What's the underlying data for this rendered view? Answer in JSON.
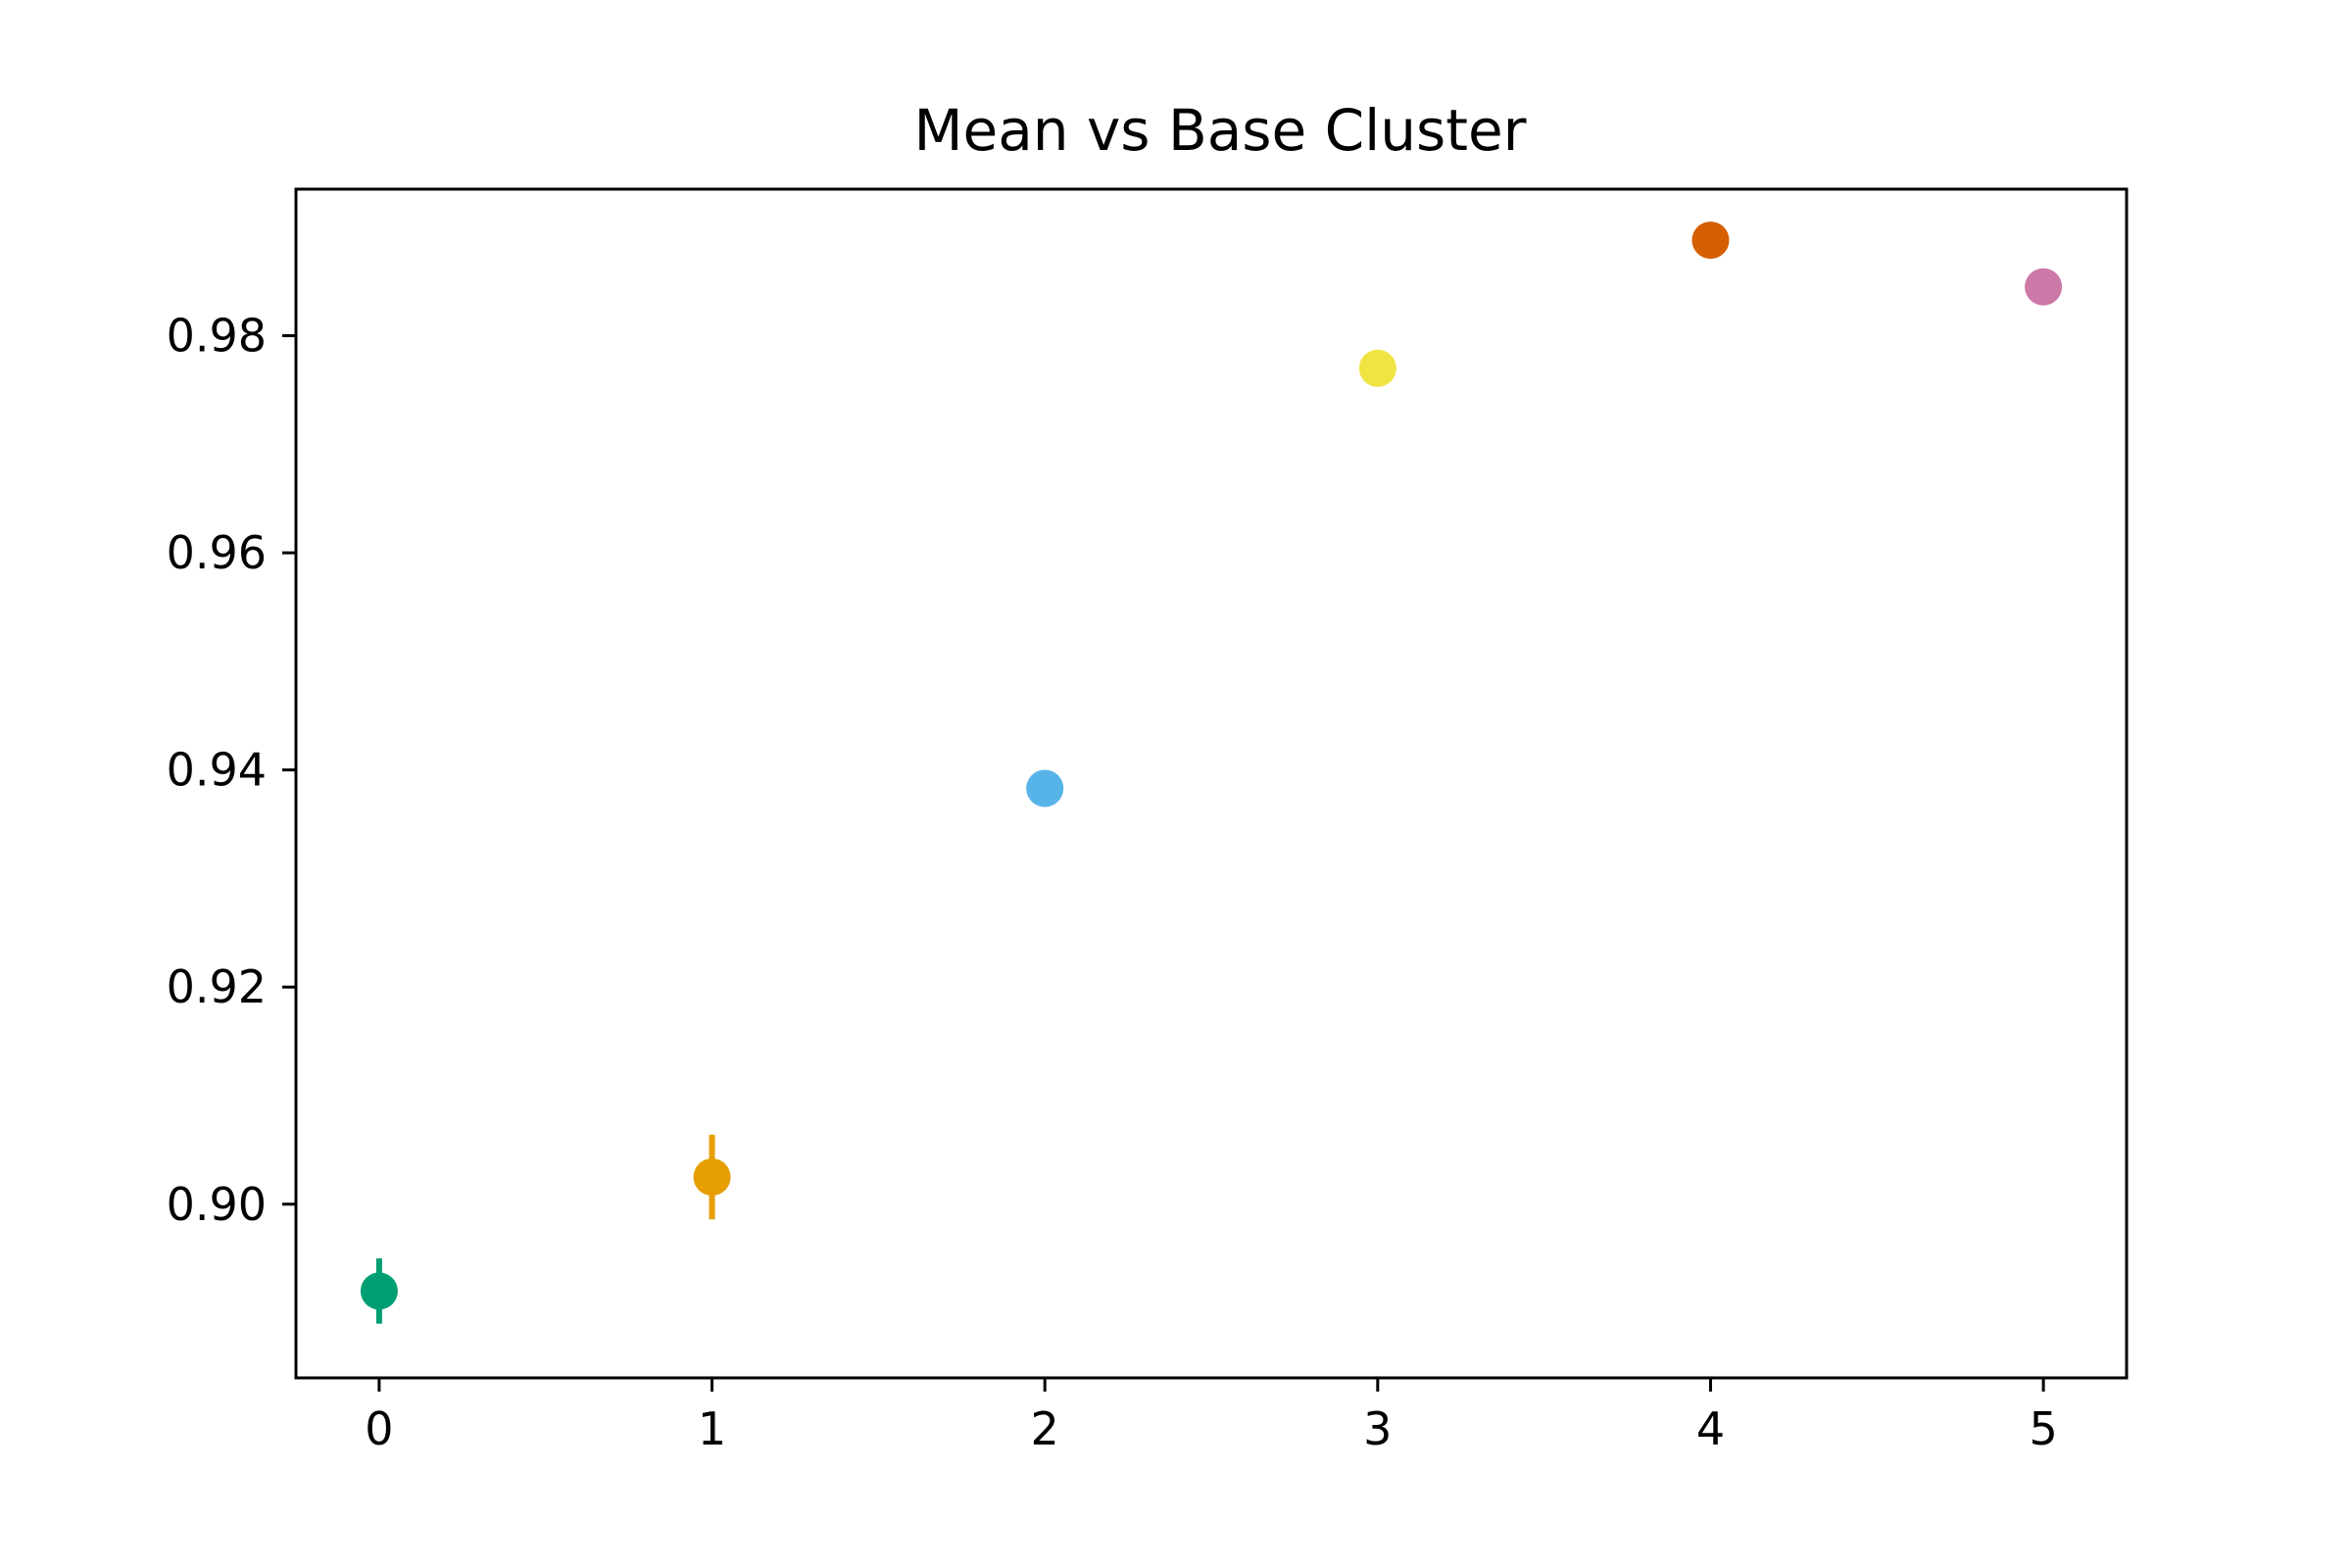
{
  "chart_data": {
    "type": "scatter",
    "title": "Mean vs Base Cluster",
    "xlabel": "",
    "ylabel": "",
    "xlim": [
      -0.25,
      5.25
    ],
    "ylim": [
      0.884,
      0.9935
    ],
    "x_ticks": [
      0,
      1,
      2,
      3,
      4,
      5
    ],
    "y_ticks": [
      0.9,
      0.92,
      0.94,
      0.96,
      0.98
    ],
    "x_tick_labels": [
      "0",
      "1",
      "2",
      "3",
      "4",
      "5"
    ],
    "y_tick_labels": [
      "0.90",
      "0.92",
      "0.94",
      "0.96",
      "0.98"
    ],
    "grid": false,
    "legend": "none",
    "points": [
      {
        "x": 0,
        "y": 0.892,
        "yerr": 0.003,
        "color": "#009E73"
      },
      {
        "x": 1,
        "y": 0.9025,
        "yerr": 0.0039,
        "color": "#E69F00"
      },
      {
        "x": 2,
        "y": 0.9383,
        "yerr": 0.0,
        "color": "#56B4E9"
      },
      {
        "x": 3,
        "y": 0.977,
        "yerr": 0.0,
        "color": "#F0E442"
      },
      {
        "x": 4,
        "y": 0.9888,
        "yerr": 0.0,
        "color": "#D55E00"
      },
      {
        "x": 5,
        "y": 0.9845,
        "yerr": 0.0,
        "color": "#CC79A7"
      }
    ]
  }
}
